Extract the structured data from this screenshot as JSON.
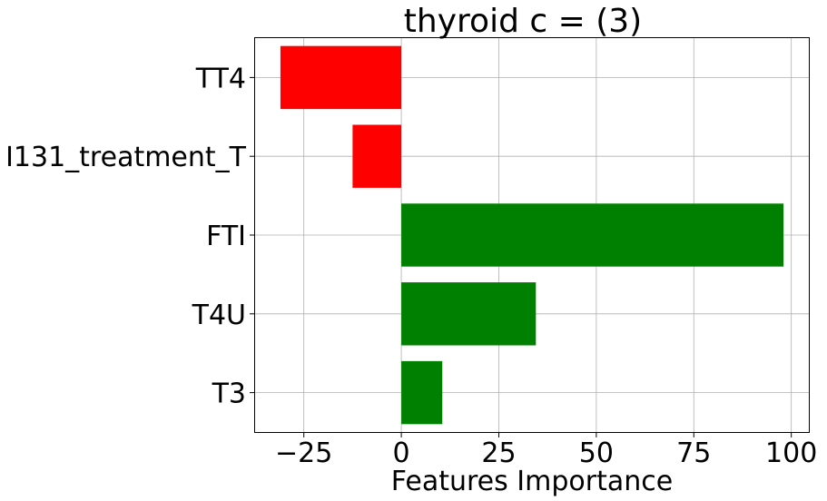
{
  "chart_data": {
    "type": "bar",
    "orientation": "horizontal",
    "title": "thyroid c = (3)",
    "xlabel": "Features Importance",
    "ylabel": "",
    "categories": [
      "TT4",
      "I131_treatment_T",
      "FTI",
      "T4U",
      "T3"
    ],
    "values": [
      -31,
      -12.5,
      98,
      34.5,
      10.5
    ],
    "xlim": [
      -37.5,
      104.5
    ],
    "xticks": [
      -25,
      0,
      25,
      50,
      75,
      100
    ],
    "xtick_labels": [
      "−25",
      "0",
      "25",
      "50",
      "75",
      "100"
    ],
    "grid": true,
    "colors": {
      "positive": "#008000",
      "negative": "#ff0000"
    }
  }
}
